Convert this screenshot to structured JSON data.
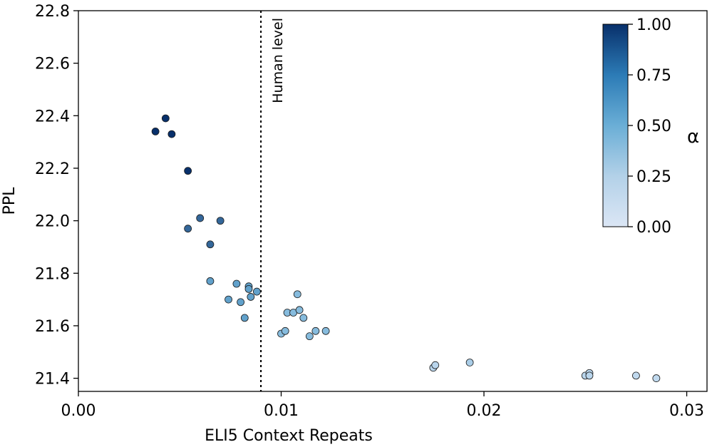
{
  "chart_data": {
    "type": "scatter",
    "xlabel": "ELI5 Context Repeats",
    "ylabel": "PPL",
    "xlim": [
      0.0,
      0.031
    ],
    "ylim": [
      21.35,
      22.8
    ],
    "xticks": [
      "0.00",
      "0.01",
      "0.02",
      "0.03"
    ],
    "xtick_values": [
      0.0,
      0.01,
      0.02,
      0.03
    ],
    "yticks": [
      "21.4",
      "21.6",
      "21.8",
      "22.0",
      "22.2",
      "22.4",
      "22.6",
      "22.8"
    ],
    "ytick_values": [
      21.4,
      21.6,
      21.8,
      22.0,
      22.2,
      22.4,
      22.6,
      22.8
    ],
    "grid": false,
    "reference_line": {
      "x": 0.009,
      "style": "dotted",
      "label": "Human level"
    },
    "colorbar": {
      "label": "α",
      "range": [
        0.0,
        1.0
      ],
      "ticks": [
        "0.00",
        "0.25",
        "0.50",
        "0.75",
        "1.00"
      ],
      "tick_values": [
        0.0,
        0.25,
        0.5,
        0.75,
        1.0
      ],
      "colormap": "Blues",
      "color_low": "#dbe6f5",
      "color_high": "#08306b"
    },
    "points": [
      {
        "x": 0.0038,
        "y": 22.34,
        "alpha": 1.0
      },
      {
        "x": 0.0043,
        "y": 22.39,
        "alpha": 1.0
      },
      {
        "x": 0.0046,
        "y": 22.33,
        "alpha": 1.0
      },
      {
        "x": 0.0054,
        "y": 22.19,
        "alpha": 1.0
      },
      {
        "x": 0.0054,
        "y": 21.97,
        "alpha": 0.78
      },
      {
        "x": 0.006,
        "y": 22.01,
        "alpha": 0.78
      },
      {
        "x": 0.007,
        "y": 22.0,
        "alpha": 0.78
      },
      {
        "x": 0.0065,
        "y": 21.91,
        "alpha": 0.78
      },
      {
        "x": 0.0065,
        "y": 21.77,
        "alpha": 0.55
      },
      {
        "x": 0.0074,
        "y": 21.7,
        "alpha": 0.55
      },
      {
        "x": 0.0078,
        "y": 21.76,
        "alpha": 0.55
      },
      {
        "x": 0.008,
        "y": 21.69,
        "alpha": 0.55
      },
      {
        "x": 0.0082,
        "y": 21.63,
        "alpha": 0.55
      },
      {
        "x": 0.0084,
        "y": 21.75,
        "alpha": 0.55
      },
      {
        "x": 0.0084,
        "y": 21.74,
        "alpha": 0.55
      },
      {
        "x": 0.0085,
        "y": 21.71,
        "alpha": 0.55
      },
      {
        "x": 0.0088,
        "y": 21.73,
        "alpha": 0.55
      },
      {
        "x": 0.01,
        "y": 21.57,
        "alpha": 0.38
      },
      {
        "x": 0.0102,
        "y": 21.58,
        "alpha": 0.38
      },
      {
        "x": 0.0103,
        "y": 21.65,
        "alpha": 0.38
      },
      {
        "x": 0.0106,
        "y": 21.65,
        "alpha": 0.38
      },
      {
        "x": 0.0108,
        "y": 21.72,
        "alpha": 0.38
      },
      {
        "x": 0.0109,
        "y": 21.66,
        "alpha": 0.38
      },
      {
        "x": 0.0111,
        "y": 21.63,
        "alpha": 0.38
      },
      {
        "x": 0.0114,
        "y": 21.56,
        "alpha": 0.38
      },
      {
        "x": 0.0117,
        "y": 21.58,
        "alpha": 0.38
      },
      {
        "x": 0.0122,
        "y": 21.58,
        "alpha": 0.38
      },
      {
        "x": 0.0175,
        "y": 21.44,
        "alpha": 0.15
      },
      {
        "x": 0.0176,
        "y": 21.45,
        "alpha": 0.15
      },
      {
        "x": 0.0193,
        "y": 21.46,
        "alpha": 0.22
      },
      {
        "x": 0.025,
        "y": 21.41,
        "alpha": 0.15
      },
      {
        "x": 0.0252,
        "y": 21.42,
        "alpha": 0.15
      },
      {
        "x": 0.0252,
        "y": 21.41,
        "alpha": 0.15
      },
      {
        "x": 0.0275,
        "y": 21.41,
        "alpha": 0.12
      },
      {
        "x": 0.0285,
        "y": 21.4,
        "alpha": 0.12
      }
    ]
  }
}
